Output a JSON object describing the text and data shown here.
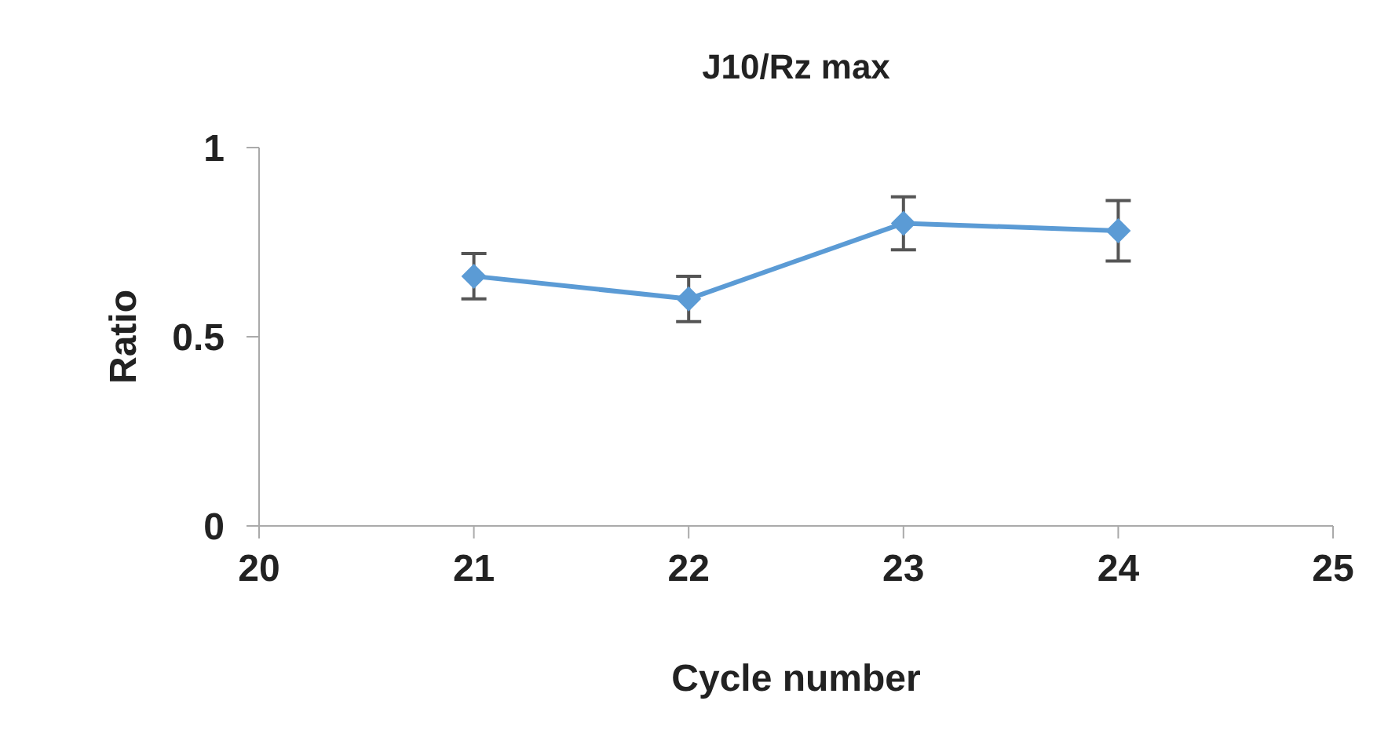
{
  "chart_data": {
    "type": "line",
    "title": "J10/Rz max",
    "xlabel": "Cycle number",
    "ylabel": "Ratio",
    "x": [
      21,
      22,
      23,
      24
    ],
    "series": [
      {
        "color": "#5b9bd5",
        "values": [
          0.66,
          0.6,
          0.8,
          0.78
        ],
        "errors": [
          0.06,
          0.06,
          0.07,
          0.08
        ]
      }
    ],
    "xlim": [
      20,
      25
    ],
    "xticks": [
      20,
      21,
      22,
      23,
      24,
      25
    ],
    "ylim": [
      0,
      1
    ],
    "yticks": [
      0,
      0.5,
      1
    ],
    "grid": false,
    "marker": "diamond",
    "line_style": "solid"
  }
}
